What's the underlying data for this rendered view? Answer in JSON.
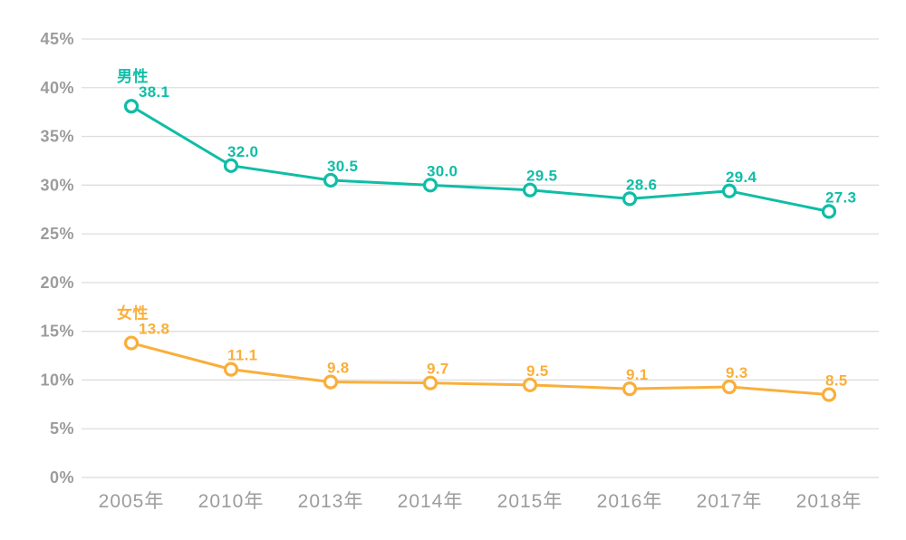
{
  "chart_data": {
    "type": "line",
    "title": "",
    "xlabel": "",
    "ylabel": "",
    "categories": [
      "2005年",
      "2010年",
      "2013年",
      "2014年",
      "2015年",
      "2016年",
      "2017年",
      "2018年"
    ],
    "series": [
      {
        "name": "男性",
        "key": "male",
        "color": "#10bda6",
        "values": [
          38.1,
          32.0,
          30.5,
          30.0,
          29.5,
          28.6,
          29.4,
          27.3
        ],
        "value_labels": [
          "38.1",
          "32.0",
          "30.5",
          "30.0",
          "29.5",
          "28.6",
          "29.4",
          "27.3"
        ]
      },
      {
        "name": "女性",
        "key": "female",
        "color": "#f9af3b",
        "values": [
          13.8,
          11.1,
          9.8,
          9.7,
          9.5,
          9.1,
          9.3,
          8.5
        ],
        "value_labels": [
          "13.8",
          "11.1",
          "9.8",
          "9.7",
          "9.5",
          "9.1",
          "9.3",
          "8.5"
        ]
      }
    ],
    "ylim": [
      0,
      45
    ],
    "y_tick_step": 5,
    "y_tick_labels": [
      "0%",
      "5%",
      "10%",
      "15%",
      "20%",
      "25%",
      "30%",
      "35%",
      "40%",
      "45%"
    ],
    "grid": true,
    "legend_position": "inline-above-first-point",
    "point_value_labels_shown": true
  },
  "colors": {
    "background": "#ffffff",
    "gridline": "#dedede",
    "axis_line": "#d9d9d9",
    "axis_text": "#9c9c9e",
    "male_series": "#10bda6",
    "female_series": "#f9af3b"
  }
}
